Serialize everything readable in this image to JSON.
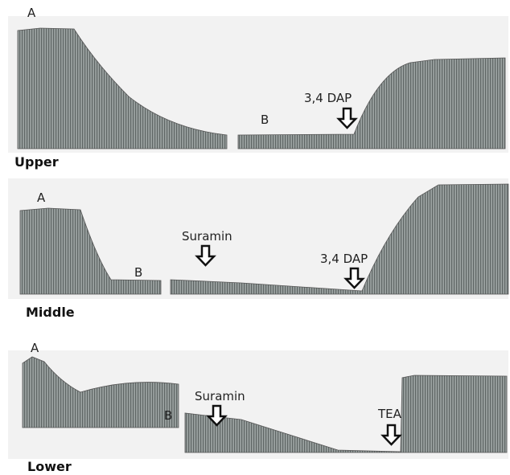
{
  "panels": [
    {
      "name": "Upper",
      "labels": {
        "a": "A",
        "b": "B"
      },
      "drugs": [
        "3,4 DAP"
      ]
    },
    {
      "name": "Middle",
      "labels": {
        "a": "A",
        "b": "B"
      },
      "drugs": [
        "Suramin",
        "3,4 DAP"
      ]
    },
    {
      "name": "Lower",
      "labels": {
        "a": "A",
        "b": "B"
      },
      "drugs": [
        "Suramin",
        "TEA"
      ]
    }
  ]
}
